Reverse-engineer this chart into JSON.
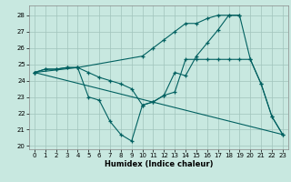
{
  "xlabel": "Humidex (Indice chaleur)",
  "xlim": [
    -0.5,
    23.5
  ],
  "ylim": [
    19.8,
    28.6
  ],
  "yticks": [
    20,
    21,
    22,
    23,
    24,
    25,
    26,
    27,
    28
  ],
  "xticks": [
    0,
    1,
    2,
    3,
    4,
    5,
    6,
    7,
    8,
    9,
    10,
    11,
    12,
    13,
    14,
    15,
    16,
    17,
    18,
    19,
    20,
    21,
    22,
    23
  ],
  "background_color": "#c8e8e0",
  "grid_color": "#a0c4bc",
  "line_color": "#006060",
  "line1": {
    "x": [
      0,
      23
    ],
    "y": [
      24.5,
      20.7
    ]
  },
  "line2": {
    "x": [
      0,
      4,
      10,
      11,
      12,
      13,
      14,
      15,
      16,
      17,
      18,
      19
    ],
    "y": [
      24.5,
      24.8,
      25.5,
      26.0,
      26.5,
      27.0,
      27.5,
      27.5,
      27.8,
      28.0,
      28.0,
      28.0
    ]
  },
  "line3": {
    "x": [
      0,
      1,
      2,
      3,
      4,
      5,
      6,
      7,
      8,
      9,
      10,
      11,
      12,
      13,
      14,
      15,
      16,
      17,
      18,
      19,
      20,
      21,
      22,
      23
    ],
    "y": [
      24.5,
      24.7,
      24.7,
      24.8,
      24.8,
      23.0,
      22.8,
      21.5,
      20.7,
      20.3,
      22.5,
      22.7,
      23.1,
      24.5,
      24.3,
      25.5,
      26.3,
      27.1,
      28.0,
      28.0,
      25.3,
      23.8,
      21.8,
      20.7
    ]
  },
  "line4": {
    "x": [
      0,
      1,
      2,
      3,
      4,
      5,
      6,
      7,
      8,
      9,
      10,
      11,
      12,
      13,
      14,
      15,
      16,
      17,
      18,
      19,
      20,
      21,
      22,
      23
    ],
    "y": [
      24.5,
      24.7,
      24.7,
      24.8,
      24.8,
      24.5,
      24.2,
      24.0,
      23.8,
      23.5,
      22.5,
      22.7,
      23.1,
      23.3,
      25.3,
      25.3,
      25.3,
      25.3,
      25.3,
      25.3,
      25.3,
      23.8,
      21.8,
      20.7
    ]
  }
}
